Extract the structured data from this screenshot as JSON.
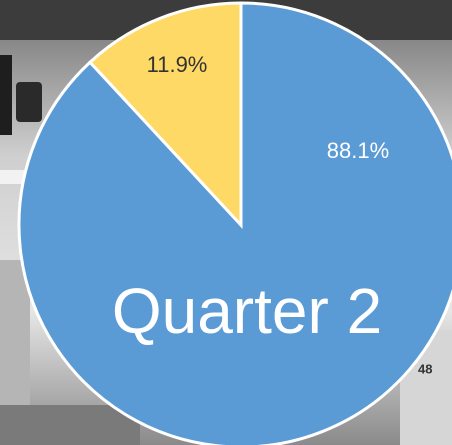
{
  "chart_data": {
    "type": "pie",
    "title": "Quarter 2",
    "values": [
      88.1,
      11.9
    ],
    "value_labels": [
      "88.1%",
      "11.9%"
    ],
    "colors": [
      "#5b9bd5",
      "#ffd966"
    ],
    "label_colors": [
      "#ffffff",
      "#333333"
    ]
  }
}
